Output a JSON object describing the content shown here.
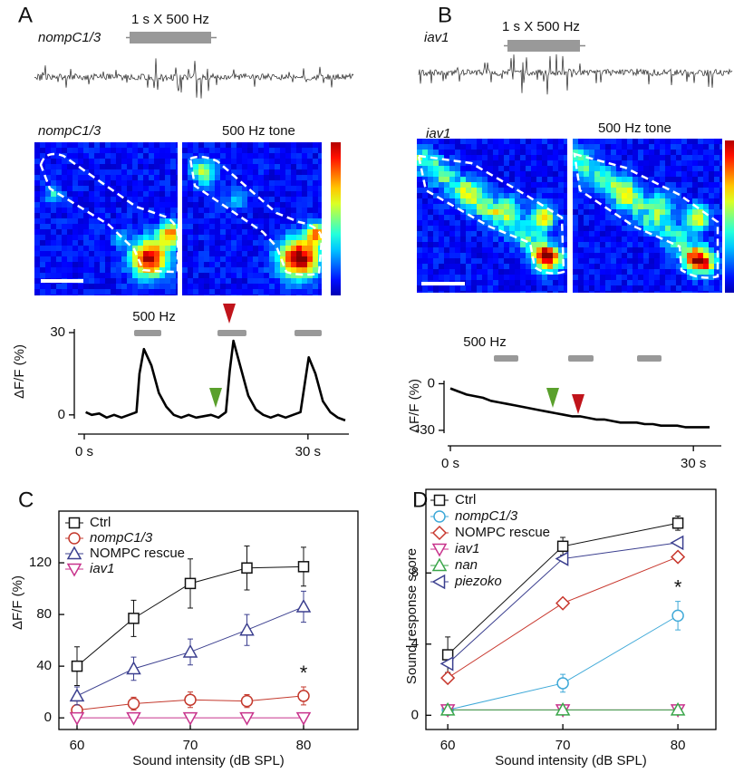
{
  "chart_data": [
    {
      "type": "line",
      "panel": "A",
      "genotype": "nompC1/3",
      "stimulus": "1 s X 500 Hz",
      "image_labels": [
        "nompC1/3",
        "500 Hz tone"
      ],
      "stimulus_label": "500 Hz",
      "ylabel": "ΔF/F (%)",
      "x": [
        0.2,
        1,
        2,
        3,
        4,
        5,
        6,
        7,
        7.4,
        8,
        9,
        10,
        11,
        12,
        13,
        14,
        15,
        16,
        17,
        18,
        19,
        19.5,
        20,
        21,
        22,
        23,
        24,
        25,
        26,
        27,
        28,
        29,
        29.6,
        30.1,
        31,
        32,
        33,
        34,
        35
      ],
      "values": [
        1,
        0,
        0.5,
        -1,
        0,
        -1,
        0,
        1,
        15,
        24,
        18,
        8,
        3,
        0,
        -1,
        0,
        -1,
        -0.5,
        0,
        -1,
        1,
        16,
        27,
        17,
        7,
        2,
        0,
        -1,
        0,
        -1,
        0,
        1,
        12,
        21,
        15,
        5,
        1,
        -1,
        -2
      ],
      "color": "#000000",
      "xlim": [
        0,
        35
      ],
      "ylim": [
        -7,
        31
      ],
      "xticks": [
        {
          "value": 0,
          "label": "0 s"
        },
        {
          "value": 30,
          "label": "30 s"
        }
      ],
      "yticks": [
        0,
        30
      ]
    },
    {
      "type": "line",
      "panel": "B",
      "genotype": "iav1",
      "stimulus": "1 s X 500 Hz",
      "image_labels": [
        "iav1",
        "500 Hz tone"
      ],
      "stimulus_label": "500 Hz",
      "ylabel": "ΔF/F (%)",
      "x": [
        0,
        1,
        2,
        3,
        4,
        5,
        6,
        7,
        8,
        9,
        10,
        11,
        12,
        13,
        14,
        15,
        16,
        17,
        18,
        19,
        20,
        21,
        22,
        23,
        24,
        25,
        26,
        27,
        28,
        29,
        30,
        31,
        32
      ],
      "values": [
        -3,
        -5,
        -7,
        -8,
        -9,
        -11,
        -12,
        -13,
        -14,
        -15,
        -16,
        -17,
        -18,
        -19,
        -20,
        -21,
        -21,
        -22,
        -23,
        -23,
        -24,
        -25,
        -25,
        -25,
        -26,
        -26,
        -27,
        -27,
        -27,
        -28,
        -28,
        -28,
        -28
      ],
      "color": "#000000",
      "xlim": [
        0,
        33
      ],
      "ylim": [
        -40,
        2
      ],
      "xticks": [
        {
          "value": 0,
          "label": "0 s"
        },
        {
          "value": 30,
          "label": "30 s"
        }
      ],
      "yticks": [
        -30,
        0
      ]
    },
    {
      "type": "line",
      "panel": "C",
      "xlabel": "Sound intensity (dB SPL)",
      "ylabel": "ΔF/F (%)",
      "annotation": "*",
      "x": [
        60,
        65,
        70,
        75,
        80
      ],
      "series": [
        {
          "name": "Ctrl",
          "color": "#111111",
          "marker": "square",
          "values": [
            40,
            77,
            104,
            116,
            117
          ],
          "errors": [
            15,
            14,
            19,
            17,
            15
          ]
        },
        {
          "name": "nompC1/3",
          "color": "#c4392d",
          "marker": "circle",
          "values": [
            6,
            11,
            14,
            13,
            17
          ],
          "errors": [
            7,
            5,
            6,
            5,
            7
          ]
        },
        {
          "name": "NOMPC rescue",
          "color": "#3b3f8f",
          "marker": "triangle-up",
          "values": [
            17,
            38,
            51,
            68,
            86
          ],
          "errors": [
            7,
            9,
            10,
            12,
            12
          ]
        },
        {
          "name": "iav1",
          "color": "#c8338c",
          "marker": "triangle-down",
          "values": [
            0,
            0,
            0,
            0,
            0
          ]
        }
      ],
      "xlim": [
        58.4,
        84.8
      ],
      "ylim": [
        -9,
        160
      ],
      "xticks": [
        60,
        70,
        80
      ],
      "yticks": [
        0,
        40,
        80,
        120
      ]
    },
    {
      "type": "line",
      "panel": "D",
      "xlabel": "Sound intensity (dB SPL)",
      "ylabel": "Sound response score",
      "annotation": "*",
      "x": [
        60,
        70,
        80
      ],
      "series": [
        {
          "name": "Ctrl",
          "color": "#111111",
          "marker": "square",
          "values": [
            3.4,
            9.5,
            10.8
          ],
          "errors": [
            1.0,
            0.5,
            0.4
          ]
        },
        {
          "name": "nompC1/3",
          "color": "#3fa9d8",
          "marker": "circle",
          "values": [
            0.3,
            1.8,
            5.6
          ],
          "errors": [
            0.2,
            0.5,
            0.8
          ]
        },
        {
          "name": "NOMPC rescue",
          "color": "#c8372d",
          "marker": "diamond",
          "values": [
            2.1,
            6.3,
            8.9
          ]
        },
        {
          "name": "iav1",
          "color": "#c8338c",
          "marker": "triangle-down",
          "values": [
            0.3,
            0.3,
            0.3
          ]
        },
        {
          "name": "nan",
          "color": "#3aa64a",
          "marker": "triangle-up",
          "values": [
            0.3,
            0.3,
            0.3
          ]
        },
        {
          "name": "piezoko",
          "color": "#3b3f8f",
          "marker": "triangle-left",
          "values": [
            2.9,
            8.8,
            9.7
          ]
        }
      ],
      "xlim": [
        58.1,
        83.3
      ],
      "ylim": [
        -0.8,
        12.7
      ],
      "xticks": [
        60,
        70,
        80
      ],
      "yticks": [
        0,
        4,
        8
      ]
    }
  ]
}
